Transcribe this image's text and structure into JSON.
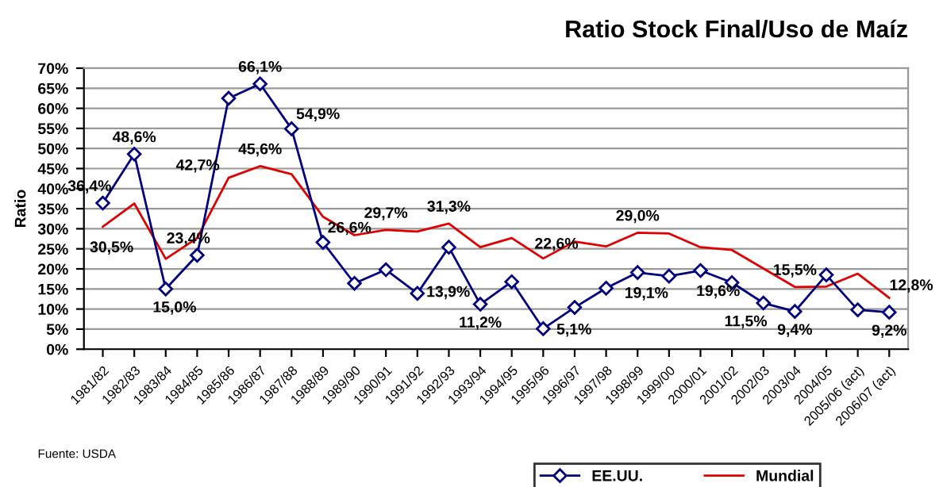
{
  "chart_data": {
    "type": "line",
    "title": "Ratio Stock Final/Uso de Maíz",
    "ylabel": "Ratio",
    "categories": [
      "1981/82",
      "1982/83",
      "1983/84",
      "1984/85",
      "1985/86",
      "1986/87",
      "1987/88",
      "1988/89",
      "1989/90",
      "1990/91",
      "1991/92",
      "1992/93",
      "1993/94",
      "1994/95",
      "1995/96",
      "1996/97",
      "1997/98",
      "1998/99",
      "1999/00",
      "2000/01",
      "2001/02",
      "2002/03",
      "2003/04",
      "2004/05",
      "2005/06 (act)",
      "2006/07 (act)"
    ],
    "series": [
      {
        "name": "EE.UU.",
        "color": "#000080",
        "marker": "diamond",
        "values": [
          36.4,
          48.6,
          15.0,
          23.4,
          62.5,
          66.1,
          54.9,
          26.6,
          16.4,
          19.8,
          13.9,
          25.4,
          11.2,
          16.8,
          5.1,
          10.4,
          15.2,
          19.1,
          18.2,
          19.6,
          16.6,
          11.5,
          9.4,
          18.5,
          9.8,
          9.2
        ],
        "value_labels": [
          "36,4%",
          "48,6%",
          "15,0%",
          "23,4%",
          null,
          "66,1%",
          "54,9%",
          "26,6%",
          null,
          null,
          "13,9%",
          null,
          "11,2%",
          null,
          "5,1%",
          null,
          null,
          "19,1%",
          null,
          "19,6%",
          null,
          "11,5%",
          "9,4%",
          null,
          null,
          "9,2%"
        ]
      },
      {
        "name": "Mundial",
        "color": "#e00000",
        "marker": "none",
        "values": [
          30.5,
          36.3,
          22.5,
          27.7,
          42.7,
          45.6,
          43.6,
          33.0,
          28.4,
          29.7,
          29.3,
          31.3,
          25.4,
          27.7,
          22.6,
          26.8,
          25.6,
          29.0,
          28.8,
          25.4,
          24.7,
          20.1,
          15.5,
          15.6,
          18.8,
          12.8
        ],
        "value_labels": [
          "30,5%",
          null,
          null,
          null,
          "42,7%",
          "45,6%",
          null,
          null,
          null,
          "29,7%",
          null,
          "31,3%",
          null,
          null,
          "22,6%",
          null,
          null,
          "29,0%",
          null,
          null,
          null,
          null,
          "15,5%",
          null,
          null,
          "12,8%"
        ]
      }
    ],
    "ylim": [
      0,
      70
    ],
    "yticks": [
      {
        "value": 0,
        "label": "0%"
      },
      {
        "value": 5,
        "label": "5%"
      },
      {
        "value": 10,
        "label": "10%"
      },
      {
        "value": 15,
        "label": "15%"
      },
      {
        "value": 20,
        "label": "20%"
      },
      {
        "value": 25,
        "label": "25%"
      },
      {
        "value": 30,
        "label": "30%"
      },
      {
        "value": 35,
        "label": "35%"
      },
      {
        "value": 40,
        "label": "40%"
      },
      {
        "value": 45,
        "label": "45%"
      },
      {
        "value": 50,
        "label": "50%"
      },
      {
        "value": 55,
        "label": "55%"
      },
      {
        "value": 60,
        "label": "60%"
      },
      {
        "value": 65,
        "label": "65%"
      },
      {
        "value": 70,
        "label": "70%"
      }
    ],
    "grid": "y",
    "legend": "bottom",
    "annotations": [
      "Fuente: USDA"
    ]
  }
}
